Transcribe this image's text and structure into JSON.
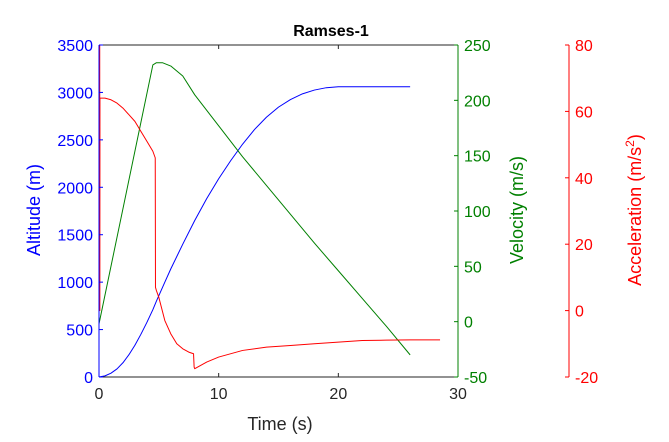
{
  "chart_data": {
    "type": "line",
    "title": "Ramses-1",
    "xlabel": "Time (s)",
    "xlim": [
      0,
      30
    ],
    "xticks": [
      0,
      10,
      20,
      30
    ],
    "grid": false,
    "axes": [
      {
        "id": "altitude",
        "label": "Altitude (m)",
        "color": "#0000ff",
        "ylim": [
          0,
          3500
        ],
        "yticks": [
          0,
          500,
          1000,
          1500,
          2000,
          2500,
          3000,
          3500
        ]
      },
      {
        "id": "velocity",
        "label": "Velocity (m/s)",
        "color": "#008000",
        "ylim": [
          -50,
          250
        ],
        "yticks": [
          -50,
          0,
          50,
          100,
          150,
          200,
          250
        ]
      },
      {
        "id": "acceleration",
        "label_main": "Acceleration (m/s",
        "label_sup": "2",
        "label_end": ")",
        "color": "#ff0000",
        "ylim": [
          -20,
          80
        ],
        "yticks": [
          -20,
          0,
          20,
          40,
          60,
          80
        ]
      }
    ],
    "series": [
      {
        "axis": "altitude",
        "x": [
          0,
          0.5,
          1,
          1.5,
          2,
          2.5,
          3,
          3.5,
          4,
          4.5,
          4.8,
          5.5,
          6,
          7,
          8,
          9,
          10,
          11,
          12,
          13,
          14,
          15,
          16,
          17,
          18,
          19,
          20,
          21,
          22,
          23,
          24,
          25,
          26
        ],
        "y": [
          0,
          12,
          40,
          85,
          150,
          235,
          335,
          450,
          575,
          710,
          800,
          1000,
          1140,
          1400,
          1650,
          1880,
          2090,
          2280,
          2455,
          2610,
          2740,
          2845,
          2925,
          2985,
          3025,
          3050,
          3060,
          3060,
          3060,
          3060,
          3060,
          3060,
          3060
        ]
      },
      {
        "axis": "velocity",
        "x": [
          0,
          4.5,
          4.8,
          5.3,
          6,
          7,
          8,
          10,
          12,
          15,
          18,
          20,
          22,
          24,
          26
        ],
        "y": [
          -2,
          232,
          234,
          234,
          231,
          222,
          205,
          177,
          149,
          110,
          71,
          46,
          21,
          -4,
          -30
        ]
      },
      {
        "axis": "acceleration",
        "x": [
          0.05,
          0.06,
          0.07,
          0.08,
          0.15,
          0.5,
          1,
          1.5,
          2,
          2.5,
          3,
          3.5,
          4,
          4.5,
          4.7,
          4.72,
          4.8,
          5,
          5.5,
          6,
          6.5,
          7,
          7.5,
          7.9,
          7.95,
          8,
          9,
          10,
          12,
          14,
          16,
          18,
          20,
          22,
          24,
          26,
          28,
          28.5
        ],
        "y": [
          0,
          80,
          0,
          64,
          64,
          64,
          63.5,
          62.5,
          61,
          59,
          57,
          54,
          51,
          48,
          46,
          7,
          6,
          4,
          -3,
          -7,
          -10,
          -11.5,
          -12.5,
          -13,
          -17,
          -17.5,
          -15.5,
          -14,
          -12,
          -11,
          -10.5,
          -10,
          -9.5,
          -9,
          -8.9,
          -8.8,
          -8.8,
          -8.8
        ]
      }
    ]
  }
}
